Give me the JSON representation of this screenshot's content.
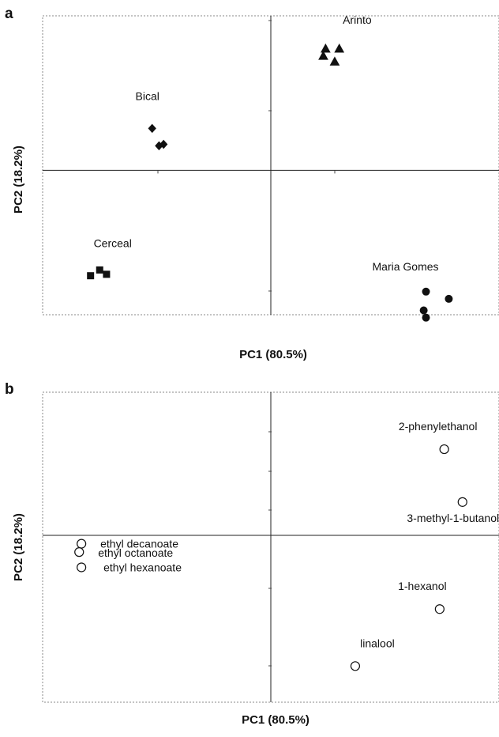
{
  "chart_data": [
    {
      "type": "scatter",
      "panel_label": "a",
      "title": "",
      "xlabel": "PC1 (80.5%)",
      "ylabel": "PC2 (18.2%)",
      "xlim": [
        -1,
        1
      ],
      "ylim": [
        -1,
        1.07
      ],
      "grid": false,
      "series": [
        {
          "label": "Arinto",
          "marker": "triangle",
          "points": [
            [
              0.24,
              0.84
            ],
            [
              0.3,
              0.84
            ],
            [
              0.23,
              0.79
            ],
            [
              0.28,
              0.75
            ]
          ]
        },
        {
          "label": "Bical",
          "marker": "diamond",
          "points": [
            [
              -0.52,
              0.29
            ],
            [
              -0.49,
              0.17
            ],
            [
              -0.47,
              0.18
            ]
          ]
        },
        {
          "label": "Cerceal",
          "marker": "square",
          "points": [
            [
              -0.79,
              -0.73
            ],
            [
              -0.75,
              -0.69
            ],
            [
              -0.72,
              -0.72
            ]
          ]
        },
        {
          "label": "Maria Gomes",
          "marker": "circle",
          "points": [
            [
              0.68,
              -0.84
            ],
            [
              0.67,
              -0.97
            ],
            [
              0.68,
              -1.02
            ],
            [
              0.78,
              -0.89
            ]
          ]
        }
      ]
    },
    {
      "type": "scatter",
      "panel_label": "b",
      "title": "",
      "xlabel": "PC1 (80.5%)",
      "ylabel": "PC2 (18.2%)",
      "xlim": [
        -1,
        1
      ],
      "ylim": [
        -1.2,
        1.03
      ],
      "grid": false,
      "points": [
        {
          "label": "2-phenylethanol",
          "x": 0.76,
          "y": 0.62
        },
        {
          "label": "3-methyl-1-butanol",
          "x": 0.84,
          "y": 0.24
        },
        {
          "label": "ethyl decanoate",
          "x": -0.83,
          "y": -0.06
        },
        {
          "label": "ethyl octanoate",
          "x": -0.84,
          "y": -0.12
        },
        {
          "label": "ethyl hexanoate",
          "x": -0.83,
          "y": -0.23
        },
        {
          "label": "1-hexanol",
          "x": 0.74,
          "y": -0.53
        },
        {
          "label": "linalool",
          "x": 0.37,
          "y": -0.94
        }
      ]
    }
  ]
}
